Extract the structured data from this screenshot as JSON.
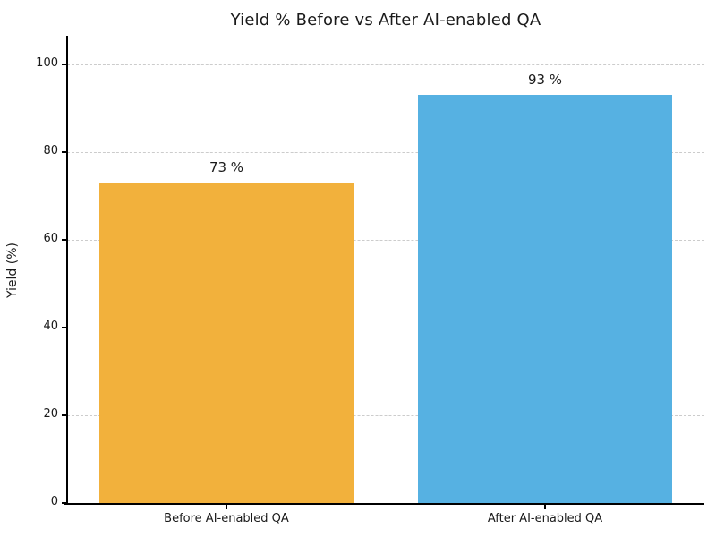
{
  "figure": {
    "background_color": "#ffffff"
  },
  "chart_data": {
    "type": "bar",
    "title": "Yield % Before vs After AI-enabled QA",
    "categories": [
      "Before AI-enabled QA",
      "After AI-enabled QA"
    ],
    "values": [
      73,
      93
    ],
    "value_labels": [
      "73 %",
      "93 %"
    ],
    "xlabel": "",
    "ylabel": "Yield (%)",
    "ylim": [
      0,
      106.5
    ],
    "yticks": [
      0,
      20,
      40,
      60,
      80,
      100
    ],
    "ytick_labels": [
      "0",
      "20",
      "40",
      "60",
      "80",
      "100"
    ],
    "grid": {
      "axis": "y",
      "style": "dashed",
      "color": "#cccccc"
    },
    "legend": "none",
    "bar_colors": [
      "#F2B13C",
      "#56B1E2"
    ],
    "text_color": "#1a1a1a",
    "spine_color": "#000000"
  }
}
